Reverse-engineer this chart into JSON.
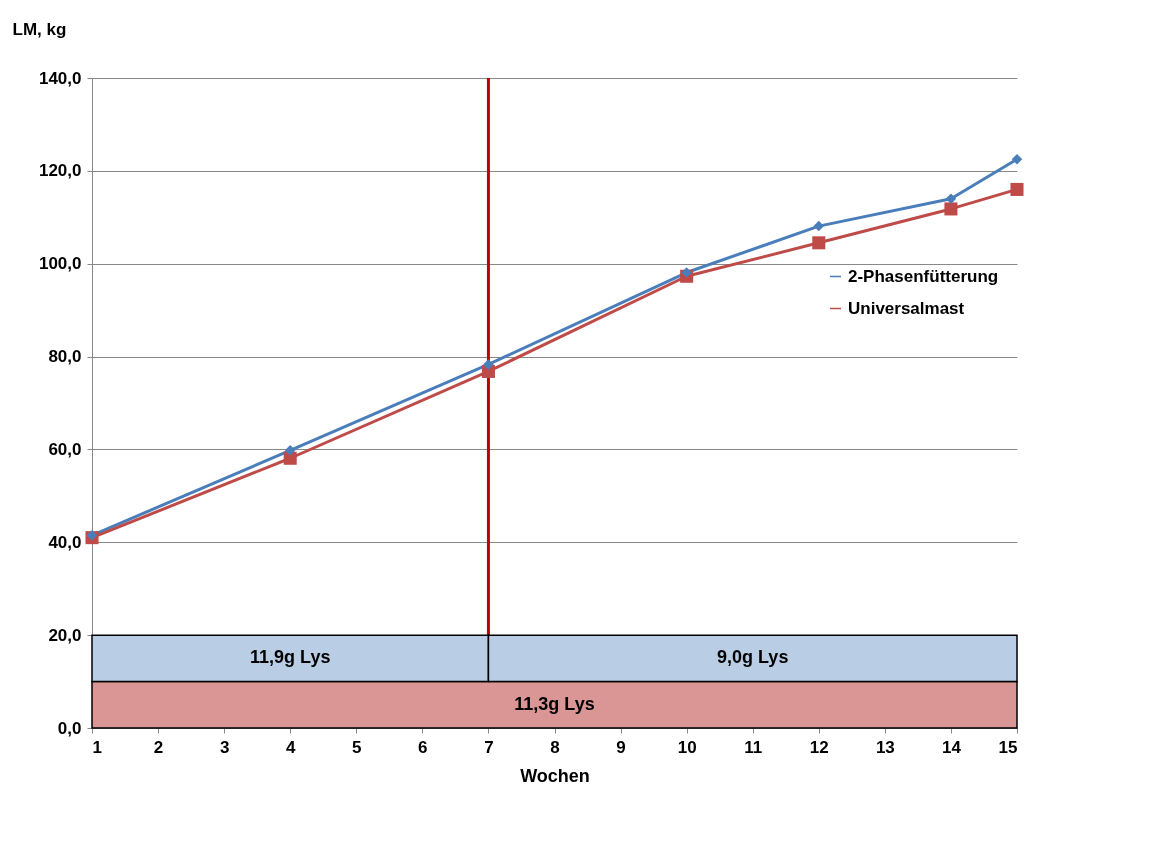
{
  "chart_data": {
    "type": "line",
    "xlabel": "Wochen",
    "ylabel": "LM, kg",
    "x": [
      1,
      4,
      7,
      10,
      12,
      14,
      15
    ],
    "series": [
      {
        "name": "2-Phasenfütterung",
        "color": "#4a7ebb",
        "marker": "diamond",
        "values": [
          41.5,
          59.8,
          78.3,
          98.1,
          108.1,
          114.0,
          122.5
        ]
      },
      {
        "name": "Universalmast",
        "color": "#be4b48",
        "marker": "square",
        "values": [
          41.0,
          58.1,
          76.8,
          97.3,
          104.5,
          111.8,
          116.0
        ]
      }
    ],
    "xlim": [
      1,
      15
    ],
    "xticks": [
      1,
      2,
      3,
      4,
      5,
      6,
      7,
      8,
      9,
      10,
      11,
      12,
      13,
      14,
      15
    ],
    "ylim": [
      0,
      140
    ],
    "yticks": [
      {
        "value": 0,
        "label": "0,0"
      },
      {
        "value": 20,
        "label": "20,0"
      },
      {
        "value": 40,
        "label": "40,0"
      },
      {
        "value": 60,
        "label": "60,0"
      },
      {
        "value": 80,
        "label": "80,0"
      },
      {
        "value": 100,
        "label": "100,0"
      },
      {
        "value": 120,
        "label": "120,0"
      },
      {
        "value": 140,
        "label": "140,0"
      }
    ],
    "ref_lines": [
      {
        "axis": "x",
        "value": 7,
        "color": "#c00000"
      }
    ],
    "bands": [
      {
        "axis": "x",
        "from": 1,
        "to": 15,
        "label": "11,3g Lys",
        "color": "#d99694"
      },
      {
        "axis": "x",
        "from": 1,
        "to": 7,
        "label": "11,9g Lys",
        "color": "#b9cde5"
      },
      {
        "axis": "x",
        "from": 7,
        "to": 15,
        "label": "9,0g Lys",
        "color": "#b9cde5"
      }
    ],
    "grid": "y",
    "legend": "right",
    "line_style": "solid"
  }
}
